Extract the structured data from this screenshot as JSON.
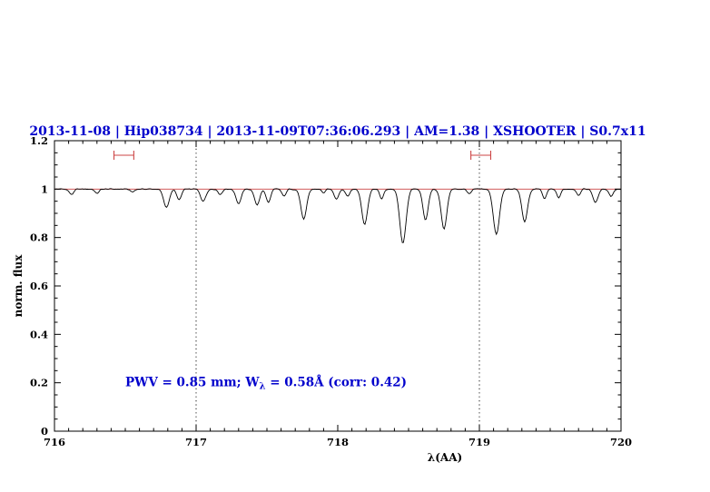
{
  "colors": {
    "blue": "#0000cc",
    "red": "#cc4444",
    "black": "#000000",
    "background": "#ffffff"
  },
  "chart_data": {
    "type": "line",
    "title": "2013-11-08 | Hip038734 | 2013-11-09T07:36:06.293 | AM=1.38 | XSHOOTER | S0.7x11",
    "xlabel": "λ(AA)",
    "ylabel": "norm. flux",
    "xlim": [
      716,
      720
    ],
    "ylim": [
      0,
      1.2
    ],
    "x_major_ticks": [
      716,
      717,
      718,
      719,
      720
    ],
    "x_major_labels": [
      "716",
      "717",
      "718",
      "719",
      "720"
    ],
    "x_minor_step": 0.1,
    "y_major_ticks": [
      0,
      0.2,
      0.4,
      0.6,
      0.8,
      1,
      1.2
    ],
    "y_major_labels": [
      "0",
      "0.2",
      "0.4",
      "0.6",
      "0.8",
      "1",
      "1.2"
    ],
    "y_minor_step": 0.05,
    "grid": "dotted-vertical-lines",
    "grid_vlines": [
      717,
      719
    ],
    "legend": "none",
    "continuum": {
      "y": 1.0
    },
    "markers": [
      {
        "x1": 716.42,
        "x2": 716.56,
        "y": 1.14
      },
      {
        "x1": 718.94,
        "x2": 719.08,
        "y": 1.14
      }
    ],
    "annotation": {
      "pre": "PWV = 0.85 mm; W",
      "sub": "λ",
      "post": " = 0.58Å (corr: 0.42)",
      "x": 716.5,
      "y": 0.185
    },
    "spectrum": {
      "description": "normalized telluric absorption spectrum, continuum = 1.0 with absorption lines [center_AA, depth, sigma_AA]",
      "continuum": 1.0,
      "sample_step": 0.008,
      "noise_amp": 0.0035,
      "lines": [
        [
          716.12,
          0.022,
          0.016
        ],
        [
          716.3,
          0.018,
          0.014
        ],
        [
          716.55,
          0.012,
          0.014
        ],
        [
          716.79,
          0.075,
          0.02
        ],
        [
          716.88,
          0.045,
          0.016
        ],
        [
          717.05,
          0.05,
          0.018
        ],
        [
          717.17,
          0.022,
          0.014
        ],
        [
          717.3,
          0.06,
          0.018
        ],
        [
          717.43,
          0.065,
          0.018
        ],
        [
          717.51,
          0.055,
          0.016
        ],
        [
          717.62,
          0.03,
          0.014
        ],
        [
          717.76,
          0.125,
          0.02
        ],
        [
          717.9,
          0.015,
          0.013
        ],
        [
          717.99,
          0.04,
          0.016
        ],
        [
          718.07,
          0.03,
          0.014
        ],
        [
          718.19,
          0.145,
          0.02
        ],
        [
          718.31,
          0.04,
          0.014
        ],
        [
          718.46,
          0.225,
          0.022
        ],
        [
          718.62,
          0.13,
          0.018
        ],
        [
          718.75,
          0.165,
          0.02
        ],
        [
          718.93,
          0.02,
          0.014
        ],
        [
          719.12,
          0.185,
          0.022
        ],
        [
          719.32,
          0.135,
          0.02
        ],
        [
          719.46,
          0.04,
          0.014
        ],
        [
          719.56,
          0.035,
          0.014
        ],
        [
          719.7,
          0.025,
          0.013
        ],
        [
          719.82,
          0.055,
          0.018
        ],
        [
          719.93,
          0.03,
          0.014
        ]
      ]
    }
  }
}
